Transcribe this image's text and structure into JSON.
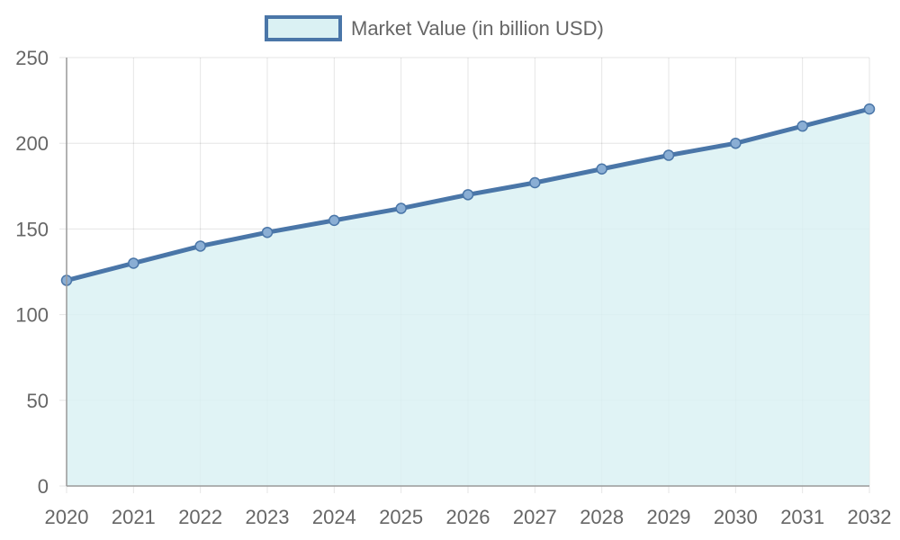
{
  "chart_data": {
    "type": "area",
    "title": "",
    "xlabel": "",
    "ylabel": "",
    "categories": [
      "2020",
      "2021",
      "2022",
      "2023",
      "2024",
      "2025",
      "2026",
      "2027",
      "2028",
      "2029",
      "2030",
      "2031",
      "2032"
    ],
    "series": [
      {
        "name": "Market Value (in billion USD)",
        "values": [
          120,
          130,
          140,
          148,
          155,
          162,
          170,
          177,
          185,
          193,
          200,
          210,
          220
        ],
        "line_color": "#4a76a8",
        "fill_color": "#daf1f3",
        "point_color": "#8aaed4"
      }
    ],
    "ylim": [
      0,
      250
    ],
    "yticks": [
      0,
      50,
      100,
      150,
      200,
      250
    ],
    "grid": true,
    "legend_position": "top-center"
  }
}
